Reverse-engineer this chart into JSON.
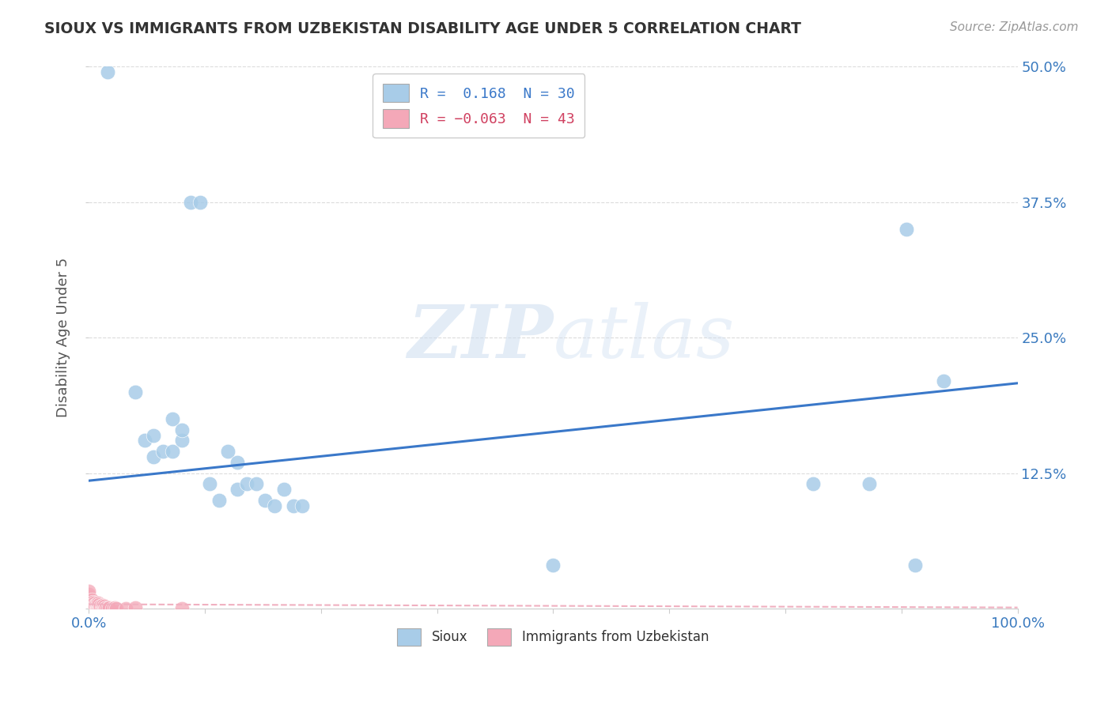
{
  "title": "SIOUX VS IMMIGRANTS FROM UZBEKISTAN DISABILITY AGE UNDER 5 CORRELATION CHART",
  "source": "Source: ZipAtlas.com",
  "ylabel": "Disability Age Under 5",
  "xlim": [
    0.0,
    1.0
  ],
  "ylim": [
    0.0,
    0.5
  ],
  "xticks": [
    0.0,
    0.125,
    0.25,
    0.375,
    0.5,
    0.625,
    0.75,
    0.875,
    1.0
  ],
  "xticklabels": [
    "0.0%",
    "",
    "",
    "",
    "",
    "",
    "",
    "",
    "100.0%"
  ],
  "yticks": [
    0.0,
    0.125,
    0.25,
    0.375,
    0.5
  ],
  "yticklabels": [
    "",
    "12.5%",
    "25.0%",
    "37.5%",
    "50.0%"
  ],
  "blue_R": 0.168,
  "blue_N": 30,
  "pink_R": -0.063,
  "pink_N": 43,
  "blue_color": "#a8cce8",
  "pink_color": "#f4a8b8",
  "blue_line_color": "#3a78c9",
  "pink_line_color": "#f0b0c0",
  "sioux_x": [
    0.02,
    0.05,
    0.06,
    0.07,
    0.07,
    0.08,
    0.09,
    0.09,
    0.1,
    0.1,
    0.11,
    0.12,
    0.13,
    0.14,
    0.15,
    0.16,
    0.16,
    0.17,
    0.18,
    0.19,
    0.2,
    0.21,
    0.22,
    0.23,
    0.5,
    0.78,
    0.84,
    0.88,
    0.89,
    0.92
  ],
  "sioux_y": [
    0.495,
    0.2,
    0.155,
    0.14,
    0.16,
    0.145,
    0.175,
    0.145,
    0.155,
    0.165,
    0.375,
    0.375,
    0.115,
    0.1,
    0.145,
    0.11,
    0.135,
    0.115,
    0.115,
    0.1,
    0.095,
    0.11,
    0.095,
    0.095,
    0.04,
    0.115,
    0.115,
    0.35,
    0.04,
    0.21
  ],
  "uzbek_x": [
    0.0,
    0.0,
    0.0,
    0.0,
    0.0,
    0.0,
    0.0,
    0.0,
    0.002,
    0.003,
    0.003,
    0.004,
    0.004,
    0.005,
    0.005,
    0.006,
    0.006,
    0.007,
    0.007,
    0.008,
    0.008,
    0.009,
    0.009,
    0.01,
    0.01,
    0.011,
    0.011,
    0.012,
    0.013,
    0.014,
    0.015,
    0.016,
    0.017,
    0.018,
    0.019,
    0.02,
    0.022,
    0.025,
    0.028,
    0.03,
    0.04,
    0.05,
    0.1
  ],
  "uzbek_y": [
    0.0,
    0.003,
    0.005,
    0.007,
    0.009,
    0.011,
    0.013,
    0.016,
    0.0,
    0.004,
    0.008,
    0.002,
    0.006,
    0.0,
    0.004,
    0.001,
    0.005,
    0.0,
    0.003,
    0.0,
    0.004,
    0.0,
    0.003,
    0.0,
    0.005,
    0.001,
    0.004,
    0.0,
    0.002,
    0.0,
    0.003,
    0.0,
    0.002,
    0.0,
    0.001,
    0.0,
    0.001,
    0.0,
    0.001,
    0.0,
    0.0,
    0.001,
    0.0
  ],
  "blue_trend_x0": 0.0,
  "blue_trend_y0": 0.118,
  "blue_trend_x1": 1.0,
  "blue_trend_y1": 0.208,
  "pink_trend_x0": 0.0,
  "pink_trend_y0": 0.004,
  "pink_trend_x1": 1.0,
  "pink_trend_y1": 0.001
}
